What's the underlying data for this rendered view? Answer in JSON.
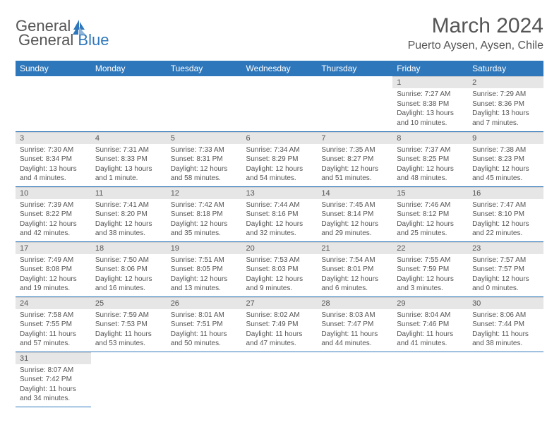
{
  "brand": {
    "general": "General",
    "blue": "Blue"
  },
  "title": "March 2024",
  "location": "Puerto Aysen, Aysen, Chile",
  "dayHeaders": [
    "Sunday",
    "Monday",
    "Tuesday",
    "Wednesday",
    "Thursday",
    "Friday",
    "Saturday"
  ],
  "style": {
    "header_bg": "#2f77bb",
    "header_fg": "#ffffff",
    "daynum_bg": "#e6e6e6",
    "cell_border": "#2f77bb",
    "text_color": "#555555",
    "body_font_size": 10,
    "header_font_size": 12,
    "title_font_size": 30,
    "location_font_size": 16
  },
  "weeks": [
    [
      null,
      null,
      null,
      null,
      null,
      {
        "n": "1",
        "sr": "Sunrise: 7:27 AM",
        "ss": "Sunset: 8:38 PM",
        "dl": "Daylight: 13 hours and 10 minutes."
      },
      {
        "n": "2",
        "sr": "Sunrise: 7:29 AM",
        "ss": "Sunset: 8:36 PM",
        "dl": "Daylight: 13 hours and 7 minutes."
      }
    ],
    [
      {
        "n": "3",
        "sr": "Sunrise: 7:30 AM",
        "ss": "Sunset: 8:34 PM",
        "dl": "Daylight: 13 hours and 4 minutes."
      },
      {
        "n": "4",
        "sr": "Sunrise: 7:31 AM",
        "ss": "Sunset: 8:33 PM",
        "dl": "Daylight: 13 hours and 1 minute."
      },
      {
        "n": "5",
        "sr": "Sunrise: 7:33 AM",
        "ss": "Sunset: 8:31 PM",
        "dl": "Daylight: 12 hours and 58 minutes."
      },
      {
        "n": "6",
        "sr": "Sunrise: 7:34 AM",
        "ss": "Sunset: 8:29 PM",
        "dl": "Daylight: 12 hours and 54 minutes."
      },
      {
        "n": "7",
        "sr": "Sunrise: 7:35 AM",
        "ss": "Sunset: 8:27 PM",
        "dl": "Daylight: 12 hours and 51 minutes."
      },
      {
        "n": "8",
        "sr": "Sunrise: 7:37 AM",
        "ss": "Sunset: 8:25 PM",
        "dl": "Daylight: 12 hours and 48 minutes."
      },
      {
        "n": "9",
        "sr": "Sunrise: 7:38 AM",
        "ss": "Sunset: 8:23 PM",
        "dl": "Daylight: 12 hours and 45 minutes."
      }
    ],
    [
      {
        "n": "10",
        "sr": "Sunrise: 7:39 AM",
        "ss": "Sunset: 8:22 PM",
        "dl": "Daylight: 12 hours and 42 minutes."
      },
      {
        "n": "11",
        "sr": "Sunrise: 7:41 AM",
        "ss": "Sunset: 8:20 PM",
        "dl": "Daylight: 12 hours and 38 minutes."
      },
      {
        "n": "12",
        "sr": "Sunrise: 7:42 AM",
        "ss": "Sunset: 8:18 PM",
        "dl": "Daylight: 12 hours and 35 minutes."
      },
      {
        "n": "13",
        "sr": "Sunrise: 7:44 AM",
        "ss": "Sunset: 8:16 PM",
        "dl": "Daylight: 12 hours and 32 minutes."
      },
      {
        "n": "14",
        "sr": "Sunrise: 7:45 AM",
        "ss": "Sunset: 8:14 PM",
        "dl": "Daylight: 12 hours and 29 minutes."
      },
      {
        "n": "15",
        "sr": "Sunrise: 7:46 AM",
        "ss": "Sunset: 8:12 PM",
        "dl": "Daylight: 12 hours and 25 minutes."
      },
      {
        "n": "16",
        "sr": "Sunrise: 7:47 AM",
        "ss": "Sunset: 8:10 PM",
        "dl": "Daylight: 12 hours and 22 minutes."
      }
    ],
    [
      {
        "n": "17",
        "sr": "Sunrise: 7:49 AM",
        "ss": "Sunset: 8:08 PM",
        "dl": "Daylight: 12 hours and 19 minutes."
      },
      {
        "n": "18",
        "sr": "Sunrise: 7:50 AM",
        "ss": "Sunset: 8:06 PM",
        "dl": "Daylight: 12 hours and 16 minutes."
      },
      {
        "n": "19",
        "sr": "Sunrise: 7:51 AM",
        "ss": "Sunset: 8:05 PM",
        "dl": "Daylight: 12 hours and 13 minutes."
      },
      {
        "n": "20",
        "sr": "Sunrise: 7:53 AM",
        "ss": "Sunset: 8:03 PM",
        "dl": "Daylight: 12 hours and 9 minutes."
      },
      {
        "n": "21",
        "sr": "Sunrise: 7:54 AM",
        "ss": "Sunset: 8:01 PM",
        "dl": "Daylight: 12 hours and 6 minutes."
      },
      {
        "n": "22",
        "sr": "Sunrise: 7:55 AM",
        "ss": "Sunset: 7:59 PM",
        "dl": "Daylight: 12 hours and 3 minutes."
      },
      {
        "n": "23",
        "sr": "Sunrise: 7:57 AM",
        "ss": "Sunset: 7:57 PM",
        "dl": "Daylight: 12 hours and 0 minutes."
      }
    ],
    [
      {
        "n": "24",
        "sr": "Sunrise: 7:58 AM",
        "ss": "Sunset: 7:55 PM",
        "dl": "Daylight: 11 hours and 57 minutes."
      },
      {
        "n": "25",
        "sr": "Sunrise: 7:59 AM",
        "ss": "Sunset: 7:53 PM",
        "dl": "Daylight: 11 hours and 53 minutes."
      },
      {
        "n": "26",
        "sr": "Sunrise: 8:01 AM",
        "ss": "Sunset: 7:51 PM",
        "dl": "Daylight: 11 hours and 50 minutes."
      },
      {
        "n": "27",
        "sr": "Sunrise: 8:02 AM",
        "ss": "Sunset: 7:49 PM",
        "dl": "Daylight: 11 hours and 47 minutes."
      },
      {
        "n": "28",
        "sr": "Sunrise: 8:03 AM",
        "ss": "Sunset: 7:47 PM",
        "dl": "Daylight: 11 hours and 44 minutes."
      },
      {
        "n": "29",
        "sr": "Sunrise: 8:04 AM",
        "ss": "Sunset: 7:46 PM",
        "dl": "Daylight: 11 hours and 41 minutes."
      },
      {
        "n": "30",
        "sr": "Sunrise: 8:06 AM",
        "ss": "Sunset: 7:44 PM",
        "dl": "Daylight: 11 hours and 38 minutes."
      }
    ],
    [
      {
        "n": "31",
        "sr": "Sunrise: 8:07 AM",
        "ss": "Sunset: 7:42 PM",
        "dl": "Daylight: 11 hours and 34 minutes."
      },
      null,
      null,
      null,
      null,
      null,
      null
    ]
  ]
}
